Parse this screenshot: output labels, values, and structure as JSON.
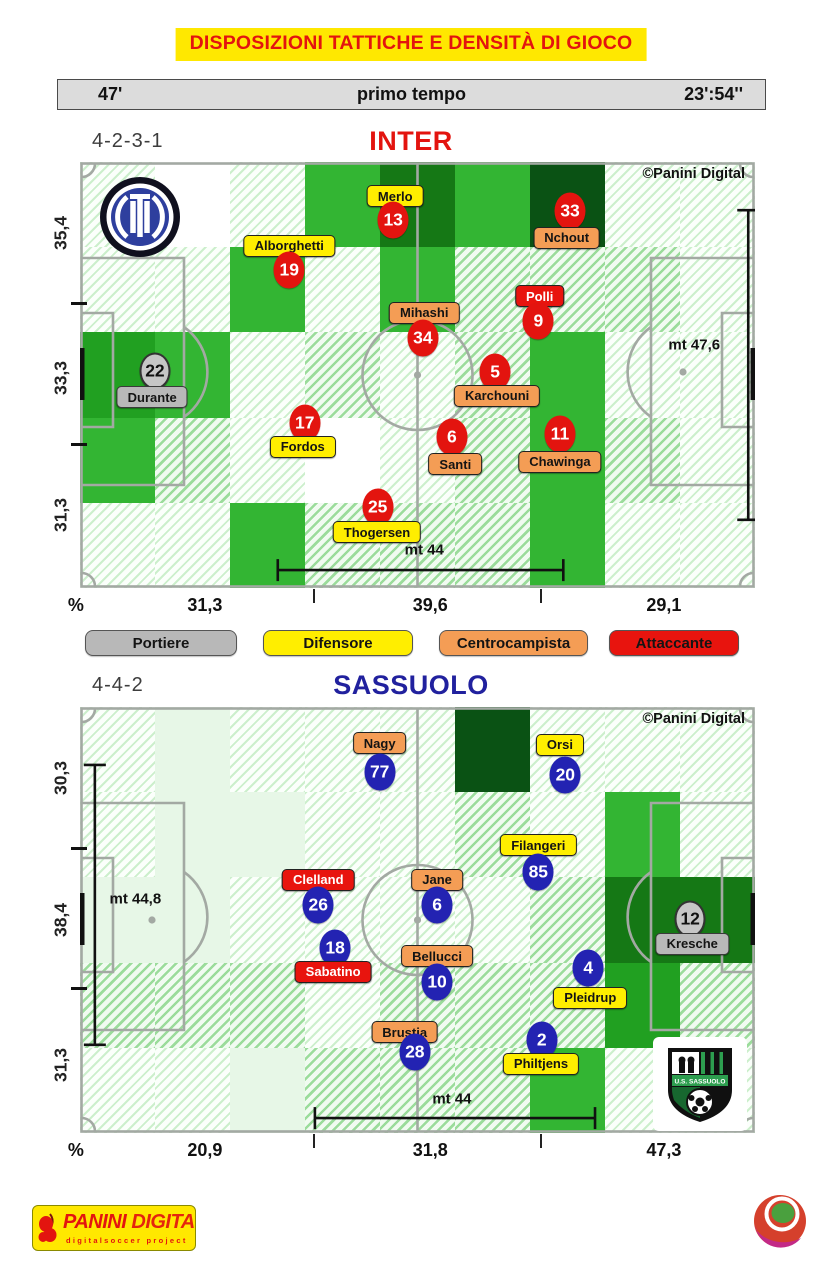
{
  "title": "DISPOSIZIONI TATTICHE E DENSITÀ DI GIOCO",
  "time_bar": {
    "minute": "47'",
    "phase": "primo tempo",
    "clock": "23':54''"
  },
  "legend": [
    {
      "role": "por",
      "label": "Portiere"
    },
    {
      "role": "dif",
      "label": "Difensore"
    },
    {
      "role": "cen",
      "label": "Centrocampista"
    },
    {
      "role": "att",
      "label": "Attaccante"
    }
  ],
  "roles": {
    "por": {
      "bg": "#b8b8b8",
      "text": "#141414"
    },
    "dif": {
      "bg": "#ffee00",
      "text": "#141414"
    },
    "cen": {
      "bg": "#f49d55",
      "text": "#141414"
    },
    "att": {
      "bg": "#e8140e",
      "text": "#ffffff"
    }
  },
  "density_palette": {
    "g1": "#33b533",
    "g2": "#21a021",
    "g3": "#157815",
    "g4": "#0a5214",
    "pale": "#e7f7e7",
    "white": "#ffffff"
  },
  "footer": {
    "brand": "PANINI",
    "brand2": "DIGITAL",
    "sub": "digitalsoccer project"
  },
  "chart_data": [
    {
      "type": "scatter",
      "title": "INTER",
      "name_color": "#e3140f",
      "circle_color": "#e3140f",
      "formation": "4-2-3-1",
      "copyright": "©Panini Digital",
      "side_axis": [
        {
          "label": "35,4",
          "pct": 16.7
        },
        {
          "label": "33,3",
          "pct": 50.7
        },
        {
          "label": "31,3",
          "pct": 82.9
        }
      ],
      "side_ticks_pct": [
        33.1,
        66.4
      ],
      "bottom_axis": [
        {
          "label": "%",
          "pct": -0.6
        },
        {
          "label": "31,3",
          "pct": 18.5
        },
        {
          "label": "39,6",
          "pct": 51.9
        },
        {
          "label": "29,1",
          "pct": 86.5
        }
      ],
      "bottom_ticks_pct": [
        34.5,
        68.1
      ],
      "measures": [
        {
          "label": "mt 47,6",
          "orient": "v",
          "x_pct": 99.0,
          "from_pct": 11.3,
          "to_pct": 84.0,
          "label_x_pct": 91.0,
          "label_y_pct": 43.0
        },
        {
          "label": "mt 44",
          "orient": "h",
          "y_pct": 95.8,
          "from_pct": 29.3,
          "to_pct": 71.6,
          "label_x_pct": 51.0,
          "label_y_pct": 91.0
        }
      ],
      "grid": [
        [
          "h1",
          "w",
          "h1",
          "g1",
          "g3",
          "g1",
          "g4",
          "h1",
          "h1"
        ],
        [
          "h1",
          "h1",
          "g1",
          "h1",
          "g1",
          "h2",
          "h2",
          "h2",
          "h1"
        ],
        [
          "g2",
          "g1",
          "h1",
          "h2",
          "h1",
          "h2",
          "g1",
          "h1",
          "h1"
        ],
        [
          "g1",
          "h2",
          "h1",
          "w",
          "h1",
          "h2",
          "g1",
          "h2",
          "h1"
        ],
        [
          "h1",
          "h1",
          "g1",
          "h2",
          "h2",
          "h2",
          "g1",
          "h1",
          "h1"
        ]
      ],
      "players": [
        {
          "number": "13",
          "name": "Merlo",
          "role": "dif",
          "label_pos": "above",
          "lx": 46.7,
          "ly": 8.0,
          "nx": 46.4,
          "ny": 13.6
        },
        {
          "number": "33",
          "name": "Nchout",
          "role": "cen",
          "label_pos": "below",
          "lx": 72.1,
          "ly": 17.8,
          "nx": 72.6,
          "ny": 11.5
        },
        {
          "number": "19",
          "name": "Alborghetti",
          "role": "dif",
          "label_pos": "above",
          "lx": 31.0,
          "ly": 19.7,
          "nx": 31.0,
          "ny": 25.4
        },
        {
          "number": "9",
          "name": "Polli",
          "role": "att",
          "label_pos": "above",
          "lx": 68.1,
          "ly": 31.5,
          "nx": 67.9,
          "ny": 37.3
        },
        {
          "number": "34",
          "name": "Mihashi",
          "role": "cen",
          "label_pos": "above",
          "lx": 51.0,
          "ly": 35.4,
          "nx": 50.8,
          "ny": 41.3
        },
        {
          "number": "5",
          "name": "Karchouni",
          "role": "cen",
          "label_pos": "below",
          "lx": 61.8,
          "ly": 54.9,
          "nx": 61.5,
          "ny": 49.3
        },
        {
          "number": "22",
          "name": "Durante",
          "role": "por",
          "label_pos": "below",
          "lx": 10.7,
          "ly": 55.2,
          "nx": 11.1,
          "ny": 49.1
        },
        {
          "number": "17",
          "name": "Fordos",
          "role": "dif",
          "label_pos": "below",
          "lx": 33.0,
          "ly": 66.9,
          "nx": 33.3,
          "ny": 61.3
        },
        {
          "number": "6",
          "name": "Santi",
          "role": "cen",
          "label_pos": "below",
          "lx": 55.6,
          "ly": 70.9,
          "nx": 55.1,
          "ny": 64.6
        },
        {
          "number": "11",
          "name": "Chawinga",
          "role": "cen",
          "label_pos": "below",
          "lx": 71.1,
          "ly": 70.4,
          "nx": 71.1,
          "ny": 63.8
        },
        {
          "number": "25",
          "name": "Thogersen",
          "role": "dif",
          "label_pos": "below",
          "lx": 44.0,
          "ly": 86.9,
          "nx": 44.1,
          "ny": 81.0
        }
      ]
    },
    {
      "type": "scatter",
      "title": "SASSUOLO",
      "name_color": "#21219e",
      "circle_color": "#2323b2",
      "formation": "4-4-2",
      "copyright": "©Panini Digital",
      "side_axis": [
        {
          "label": "30,3",
          "pct": 16.7
        },
        {
          "label": "38,4",
          "pct": 50.0
        },
        {
          "label": "31,3",
          "pct": 84.0
        }
      ],
      "side_ticks_pct": [
        33.1,
        66.0
      ],
      "bottom_axis": [
        {
          "label": "%",
          "pct": -0.6
        },
        {
          "label": "20,9",
          "pct": 18.5
        },
        {
          "label": "31,8",
          "pct": 51.9
        },
        {
          "label": "47,3",
          "pct": 86.5
        }
      ],
      "bottom_ticks_pct": [
        34.5,
        68.1
      ],
      "measures": [
        {
          "label": "mt 44,8",
          "orient": "v",
          "x_pct": 2.2,
          "from_pct": 13.6,
          "to_pct": 79.3,
          "label_x_pct": 8.2,
          "label_y_pct": 45.0
        },
        {
          "label": "mt 44",
          "orient": "h",
          "y_pct": 96.5,
          "from_pct": 34.8,
          "to_pct": 76.3,
          "label_x_pct": 55.1,
          "label_y_pct": 92.0
        }
      ],
      "grid": [
        [
          "h1",
          "p",
          "h1",
          "h1",
          "h1",
          "g4",
          "h1",
          "h1",
          "h1"
        ],
        [
          "h1",
          "p",
          "p",
          "h1",
          "h1",
          "h2",
          "h1",
          "g1",
          "h1"
        ],
        [
          "p",
          "p",
          "h1",
          "h1",
          "h1",
          "h1",
          "h2",
          "g3",
          "g3"
        ],
        [
          "h2",
          "h2",
          "h2",
          "h1",
          "h2",
          "h2",
          "h2",
          "g2",
          "h2"
        ],
        [
          "h1",
          "h1",
          "p",
          "h2",
          "h2",
          "h2",
          "g1",
          "h1",
          "h1"
        ]
      ],
      "players": [
        {
          "number": "77",
          "name": "Nagy",
          "role": "cen",
          "label_pos": "above",
          "lx": 44.4,
          "ly": 8.5,
          "nx": 44.4,
          "ny": 15.3
        },
        {
          "number": "20",
          "name": "Orsi",
          "role": "dif",
          "label_pos": "above",
          "lx": 71.1,
          "ly": 8.9,
          "nx": 71.9,
          "ny": 16.0
        },
        {
          "number": "85",
          "name": "Filangeri",
          "role": "dif",
          "label_pos": "above",
          "lx": 67.9,
          "ly": 32.4,
          "nx": 67.9,
          "ny": 38.7
        },
        {
          "number": "26",
          "name": "Clelland",
          "role": "att",
          "label_pos": "above",
          "lx": 35.3,
          "ly": 40.6,
          "nx": 35.3,
          "ny": 46.5
        },
        {
          "number": "6",
          "name": "Jane",
          "role": "cen",
          "label_pos": "above",
          "lx": 52.9,
          "ly": 40.6,
          "nx": 52.9,
          "ny": 46.5
        },
        {
          "number": "12",
          "name": "Kresche",
          "role": "por",
          "label_pos": "below",
          "lx": 90.7,
          "ly": 55.6,
          "nx": 90.4,
          "ny": 49.8
        },
        {
          "number": "18",
          "name": "Sabatino",
          "role": "att",
          "label_pos": "below",
          "lx": 37.5,
          "ly": 62.2,
          "nx": 37.8,
          "ny": 56.6
        },
        {
          "number": "10",
          "name": "Bellucci",
          "role": "cen",
          "label_pos": "above",
          "lx": 52.9,
          "ly": 58.5,
          "nx": 52.9,
          "ny": 64.6
        },
        {
          "number": "4",
          "name": "Pleidrup",
          "role": "dif",
          "label_pos": "below",
          "lx": 75.6,
          "ly": 68.3,
          "nx": 75.3,
          "ny": 61.3
        },
        {
          "number": "28",
          "name": "Brustia",
          "role": "cen",
          "label_pos": "above",
          "lx": 48.1,
          "ly": 76.3,
          "nx": 49.6,
          "ny": 81.0
        },
        {
          "number": "2",
          "name": "Philtjens",
          "role": "dif",
          "label_pos": "below",
          "lx": 68.3,
          "ly": 83.8,
          "nx": 68.4,
          "ny": 78.2
        }
      ]
    }
  ]
}
